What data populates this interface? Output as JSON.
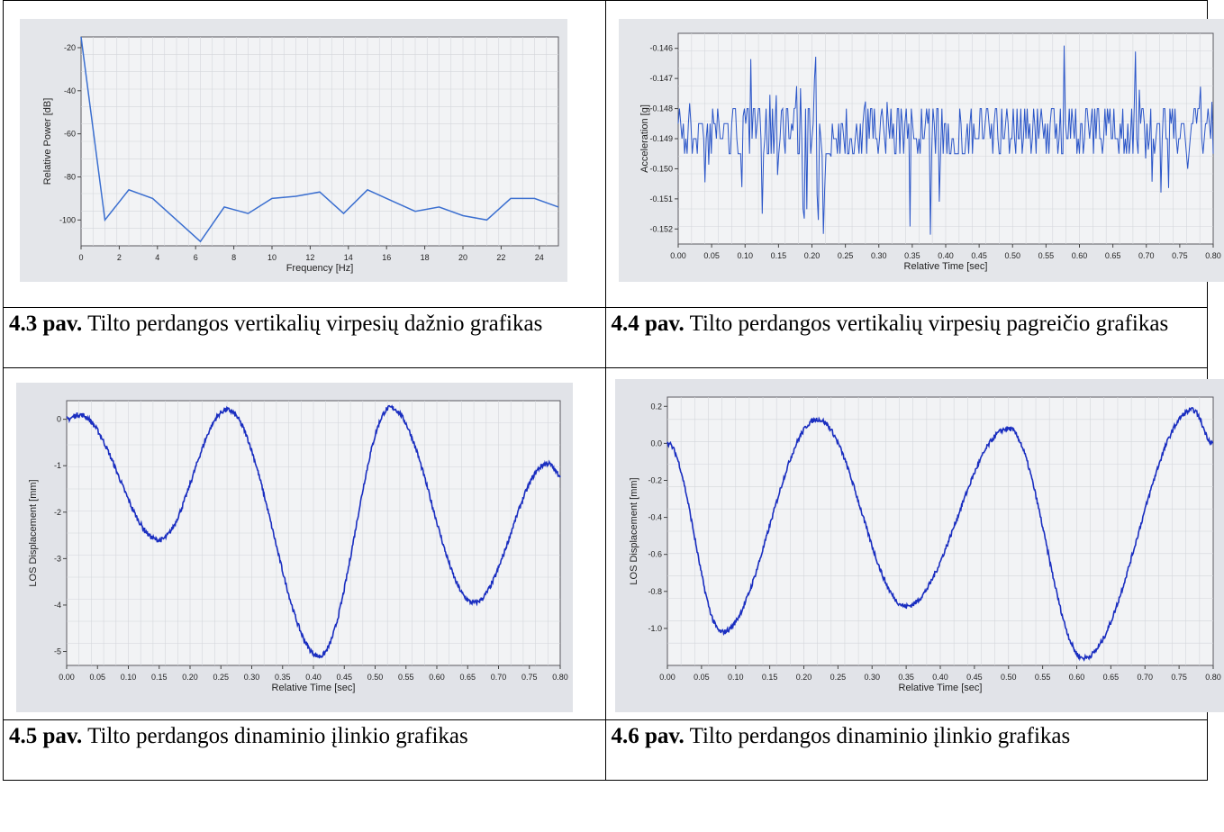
{
  "figures": [
    {
      "caption_num": "4.3 pav.",
      "caption_text": " Tilto perdangos vertikalių virpesių dažnio grafikas",
      "chart_data": {
        "type": "line",
        "xlabel": "Frequency [Hz]",
        "ylabel": "Relative Power [dB]",
        "xlim": [
          0,
          25
        ],
        "ylim": [
          -112,
          -15
        ],
        "xticks": [
          "0",
          "2",
          "4",
          "6",
          "8",
          "10",
          "12",
          "14",
          "16",
          "18",
          "20",
          "22",
          "24"
        ],
        "yticks": [
          "-20",
          "-40",
          "-60",
          "-80",
          "-100"
        ],
        "x": [
          0,
          1.25,
          2.5,
          3.75,
          5,
          6.25,
          7.5,
          8.75,
          10,
          11.25,
          12.5,
          13.75,
          15,
          16.25,
          17.5,
          18.75,
          20,
          21.25,
          22.5,
          23.75,
          25
        ],
        "y": [
          -15,
          -100,
          -86,
          -90,
          -100,
          -110,
          -94,
          -97,
          -90,
          -89,
          -87,
          -97,
          -86,
          -91,
          -96,
          -94,
          -98,
          -100,
          -90,
          -90,
          -94
        ],
        "color": "#3b6fd0"
      }
    },
    {
      "caption_num": "4.4 pav.",
      "caption_text": " Tilto perdangos vertikalių virpesių pagreičio grafikas",
      "chart_data": {
        "type": "line",
        "xlabel": "Relative Time [sec]",
        "ylabel": "Acceleration [g]",
        "xlim": [
          0,
          0.8
        ],
        "ylim": [
          -0.1525,
          -0.1455
        ],
        "xticks": [
          "0.00",
          "0.05",
          "0.10",
          "0.15",
          "0.20",
          "0.25",
          "0.30",
          "0.35",
          "0.40",
          "0.45",
          "0.50",
          "0.55",
          "0.60",
          "0.65",
          "0.70",
          "0.75",
          "0.80"
        ],
        "yticks": [
          "-0.146",
          "-0.147",
          "-0.148",
          "-0.149",
          "-0.150",
          "-0.151",
          "-0.152"
        ],
        "levels": [
          -0.148,
          -0.1485,
          -0.149,
          -0.1495
        ],
        "color": "#2a55c8"
      }
    },
    {
      "caption_num": "4.5 pav.",
      "caption_text": " Tilto perdangos dinaminio įlinkio grafikas",
      "chart_data": {
        "type": "line",
        "xlabel": "Relative Time [sec]",
        "ylabel": "LOS Displacement [mm]",
        "xlim": [
          0,
          0.8
        ],
        "ylim": [
          -5.3,
          0.4
        ],
        "xticks": [
          "0.00",
          "0.05",
          "0.10",
          "0.15",
          "0.20",
          "0.25",
          "0.30",
          "0.35",
          "0.40",
          "0.45",
          "0.50",
          "0.55",
          "0.60",
          "0.65",
          "0.70",
          "0.75",
          "0.80"
        ],
        "yticks": [
          "0",
          "-1",
          "-2",
          "-3",
          "-4",
          "-5"
        ],
        "x": [
          0,
          0.02,
          0.15,
          0.26,
          0.41,
          0.525,
          0.66,
          0.78,
          0.8
        ],
        "y": [
          0,
          0.1,
          -2.6,
          0.2,
          -5.1,
          0.25,
          -3.95,
          -0.95,
          -1.2
        ],
        "color": "#1a2ec0"
      }
    },
    {
      "caption_num": "4.6 pav.",
      "caption_text": " Tilto perdangos dinaminio įlinkio grafikas",
      "chart_data": {
        "type": "line",
        "xlabel": "Relative Time [sec]",
        "ylabel": "LOS Displacement [mm]",
        "xlim": [
          0,
          0.8
        ],
        "ylim": [
          -1.2,
          0.25
        ],
        "xticks": [
          "0.00",
          "0.05",
          "0.10",
          "0.15",
          "0.20",
          "0.25",
          "0.30",
          "0.35",
          "0.40",
          "0.45",
          "0.50",
          "0.55",
          "0.60",
          "0.65",
          "0.70",
          "0.75",
          "0.80"
        ],
        "yticks": [
          "0.2",
          "0.0",
          "-0.2",
          "-0.4",
          "-0.6",
          "-0.8",
          "-1.0"
        ],
        "x": [
          0,
          0.08,
          0.22,
          0.35,
          0.5,
          0.61,
          0.77,
          0.8
        ],
        "y": [
          0,
          -1.02,
          0.13,
          -0.88,
          0.08,
          -1.16,
          0.18,
          0.0
        ],
        "color": "#1a2ec0"
      }
    }
  ]
}
